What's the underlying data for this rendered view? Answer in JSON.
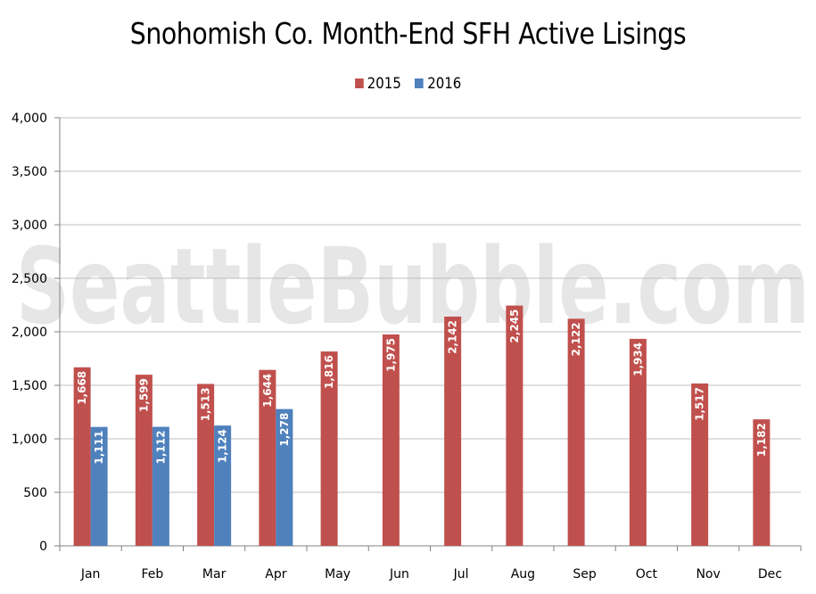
{
  "chart_data": {
    "type": "bar",
    "title": "Snohomish Co. Month-End SFH Active Lisings",
    "watermark": "SeattleBubble.com",
    "categories": [
      "Jan",
      "Feb",
      "Mar",
      "Apr",
      "May",
      "Jun",
      "Jul",
      "Aug",
      "Sep",
      "Oct",
      "Nov",
      "Dec"
    ],
    "series": [
      {
        "name": "2015",
        "color": "#c0504d",
        "values": [
          1668,
          1599,
          1513,
          1644,
          1816,
          1975,
          2142,
          2245,
          2122,
          1934,
          1517,
          1182
        ],
        "labels": [
          "1,668",
          "1,599",
          "1,513",
          "1,644",
          "1,816",
          "1,975",
          "2,142",
          "2,245",
          "2,122",
          "1,934",
          "1,517",
          "1,182"
        ]
      },
      {
        "name": "2016",
        "color": "#4f81bd",
        "values": [
          1111,
          1112,
          1124,
          1278,
          null,
          null,
          null,
          null,
          null,
          null,
          null,
          null
        ],
        "labels": [
          "1,111",
          "1,112",
          "1,124",
          "1,278",
          null,
          null,
          null,
          null,
          null,
          null,
          null,
          null
        ]
      }
    ],
    "xlabel": "",
    "ylabel": "",
    "ylim": [
      0,
      4000
    ],
    "yticks": [
      0,
      500,
      1000,
      1500,
      2000,
      2500,
      3000,
      3500,
      4000
    ],
    "ytick_labels": [
      "0",
      "500",
      "1,000",
      "1,500",
      "2,000",
      "2,500",
      "3,000",
      "3,500",
      "4,000"
    ],
    "grid": true,
    "legend_position": "top-center",
    "data_labels": "inside-end-rotated"
  }
}
